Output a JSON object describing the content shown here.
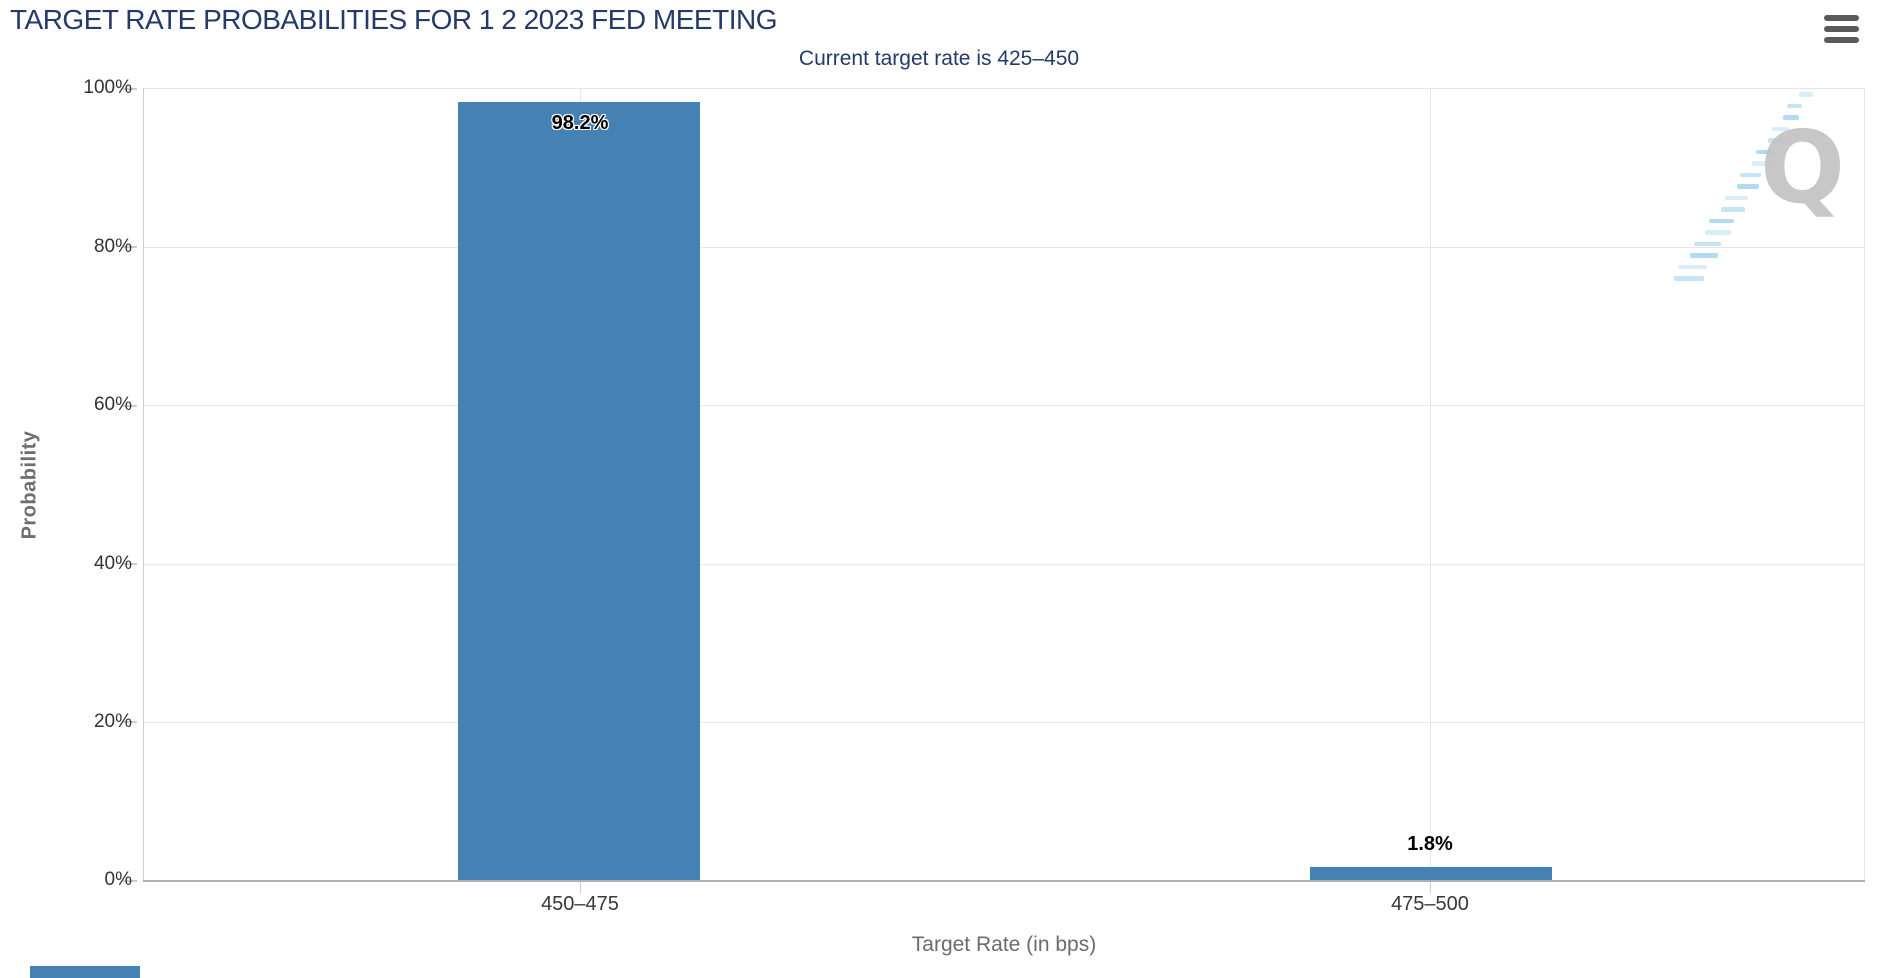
{
  "menu": {
    "icon": "hamburger-icon"
  },
  "watermark": {
    "letter": "Q"
  },
  "chart_data": {
    "type": "bar",
    "title": "TARGET RATE PROBABILITIES FOR 1 2 2023 FED MEETING",
    "subtitle": "Current target rate is 425–450",
    "categories": [
      "450–475",
      "475–500"
    ],
    "values": [
      98.2,
      1.8
    ],
    "value_labels": [
      "98.2%",
      "1.8%"
    ],
    "xlabel": "Target Rate (in bps)",
    "ylabel": "Probability",
    "ylim": [
      0,
      100
    ],
    "ytick_labels": [
      "100%",
      "80%",
      "60%",
      "40%",
      "20%",
      "0%"
    ],
    "grid": true,
    "legend": "none",
    "bar_color": "#4681b4",
    "title_color": "#243a6b"
  }
}
